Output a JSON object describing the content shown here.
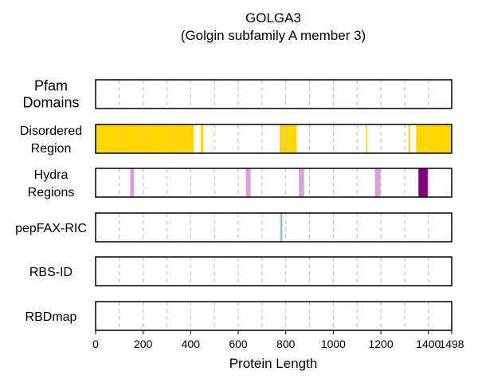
{
  "chart_data": {
    "type": "bar",
    "title": "GOLGA3",
    "subtitle": "(Golgin subfamily A member 3)",
    "xlabel": "Protein Length",
    "xlim": [
      0,
      1498
    ],
    "xticks": [
      "0",
      "200",
      "400",
      "600",
      "800",
      "1000",
      "1200",
      "1400",
      "1498"
    ],
    "xtick_values": [
      0,
      200,
      400,
      600,
      800,
      1000,
      1200,
      1400,
      1498
    ],
    "grid_positions": [
      100,
      200,
      300,
      400,
      500,
      600,
      700,
      800,
      900,
      1000,
      1100,
      1200,
      1300,
      1400
    ],
    "grid": true,
    "tracks": [
      {
        "label_lines": [
          "Pfam",
          "Domains"
        ],
        "large": true,
        "segments": []
      },
      {
        "label_lines": [
          "Disordered",
          "Region"
        ],
        "large": false,
        "segments": [
          {
            "start": 1,
            "end": 412,
            "color": "#FFD700"
          },
          {
            "start": 442,
            "end": 452,
            "color": "#FFD700"
          },
          {
            "start": 774,
            "end": 846,
            "color": "#FFD700"
          },
          {
            "start": 1137,
            "end": 1141,
            "color": "#FFD700"
          },
          {
            "start": 1316,
            "end": 1323,
            "color": "#FFD700"
          },
          {
            "start": 1348,
            "end": 1498,
            "color": "#FFD700"
          }
        ]
      },
      {
        "label_lines": [
          "Hydra",
          "Regions"
        ],
        "large": false,
        "segments": [
          {
            "start": 145,
            "end": 162,
            "color": "#DDA0DD"
          },
          {
            "start": 632,
            "end": 652,
            "color": "#DDA0DD"
          },
          {
            "start": 855,
            "end": 877,
            "color": "#DDA0DD"
          },
          {
            "start": 1175,
            "end": 1198,
            "color": "#DDA0DD"
          },
          {
            "start": 1358,
            "end": 1397,
            "color": "#800080"
          }
        ]
      },
      {
        "label_lines": [
          "pepFAX-RIC"
        ],
        "large": false,
        "segments": [
          {
            "start": 776,
            "end": 786,
            "color": "#96C8C8"
          }
        ]
      },
      {
        "label_lines": [
          "RBS-ID"
        ],
        "large": false,
        "segments": []
      },
      {
        "label_lines": [
          "RBDmap"
        ],
        "large": false,
        "segments": []
      }
    ]
  }
}
